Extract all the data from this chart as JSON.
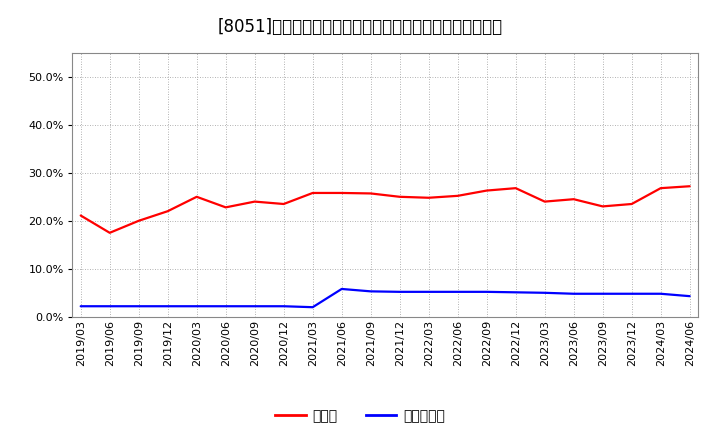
{
  "title": "[8051]　現須金、有利子負債の総資産に対する比率の推移",
  "x_labels": [
    "2019/03",
    "2019/06",
    "2019/09",
    "2019/12",
    "2020/03",
    "2020/06",
    "2020/09",
    "2020/12",
    "2021/03",
    "2021/06",
    "2021/09",
    "2021/12",
    "2022/03",
    "2022/06",
    "2022/09",
    "2022/12",
    "2023/03",
    "2023/06",
    "2023/09",
    "2023/12",
    "2024/03",
    "2024/06"
  ],
  "cash_ratio": [
    0.211,
    0.175,
    0.2,
    0.22,
    0.25,
    0.228,
    0.24,
    0.235,
    0.258,
    0.258,
    0.257,
    0.25,
    0.248,
    0.252,
    0.263,
    0.268,
    0.24,
    0.245,
    0.23,
    0.235,
    0.268,
    0.272
  ],
  "debt_ratio": [
    0.022,
    0.022,
    0.022,
    0.022,
    0.022,
    0.022,
    0.022,
    0.022,
    0.02,
    0.058,
    0.053,
    0.052,
    0.052,
    0.052,
    0.052,
    0.051,
    0.05,
    0.048,
    0.048,
    0.048,
    0.048,
    0.043
  ],
  "cash_color": "#ff0000",
  "debt_color": "#0000ff",
  "bg_color": "#ffffff",
  "plot_bg_color": "#ffffff",
  "grid_color": "#999999",
  "ylim": [
    0.0,
    0.55
  ],
  "yticks": [
    0.0,
    0.1,
    0.2,
    0.3,
    0.4,
    0.5
  ],
  "legend_cash": "現須金",
  "legend_debt": "有利子負債",
  "title_fontsize": 12,
  "legend_fontsize": 10,
  "tick_fontsize": 8,
  "line_width": 1.6
}
